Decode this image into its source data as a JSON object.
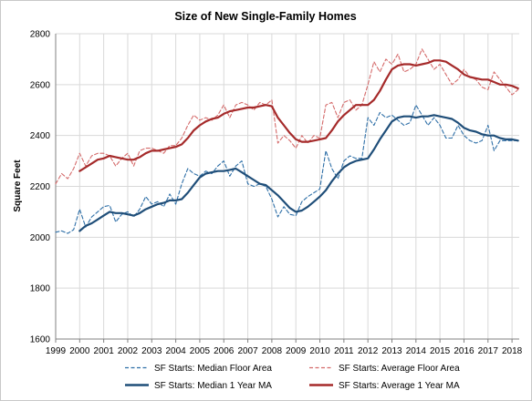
{
  "chart_data": {
    "type": "line",
    "title": "Size of New Single-Family Homes",
    "ylabel": "Square Feet",
    "xlabel": "",
    "xlim": [
      1999,
      2018.3
    ],
    "ylim": [
      1600,
      2800
    ],
    "yticks": [
      1600,
      1800,
      2000,
      2200,
      2400,
      2600,
      2800
    ],
    "xticks": [
      "1999",
      "2000",
      "2001",
      "2002",
      "2003",
      "2004",
      "2005",
      "2006",
      "2007",
      "2008",
      "2009",
      "2010",
      "2011",
      "2012",
      "2013",
      "2014",
      "2015",
      "2016",
      "2017",
      "2018"
    ],
    "grid": true,
    "legend_position": "bottom",
    "colors": {
      "median": "#2e6fa7",
      "median_ma": "#1f4e79",
      "average": "#d46a6a",
      "average_ma": "#a52a2a",
      "grid": "#d9d9d9",
      "axis": "#808080"
    },
    "series": [
      {
        "name": "SF Starts: Median Floor Area",
        "style": "dashed",
        "color": "#2e6fa7",
        "x": [
          1999.0,
          1999.25,
          1999.5,
          1999.75,
          2000.0,
          2000.25,
          2000.5,
          2000.75,
          2001.0,
          2001.25,
          2001.5,
          2001.75,
          2002.0,
          2002.25,
          2002.5,
          2002.75,
          2003.0,
          2003.25,
          2003.5,
          2003.75,
          2004.0,
          2004.25,
          2004.5,
          2004.75,
          2005.0,
          2005.25,
          2005.5,
          2005.75,
          2006.0,
          2006.25,
          2006.5,
          2006.75,
          2007.0,
          2007.25,
          2007.5,
          2007.75,
          2008.0,
          2008.25,
          2008.5,
          2008.75,
          2009.0,
          2009.25,
          2009.5,
          2009.75,
          2010.0,
          2010.25,
          2010.5,
          2010.75,
          2011.0,
          2011.25,
          2011.5,
          2011.75,
          2012.0,
          2012.25,
          2012.5,
          2012.75,
          2013.0,
          2013.25,
          2013.5,
          2013.75,
          2014.0,
          2014.25,
          2014.5,
          2014.75,
          2015.0,
          2015.25,
          2015.5,
          2015.75,
          2016.0,
          2016.25,
          2016.5,
          2016.75,
          2017.0,
          2017.25,
          2017.5,
          2017.75,
          2018.0,
          2018.25
        ],
        "values": [
          2020,
          2025,
          2015,
          2030,
          2110,
          2040,
          2080,
          2100,
          2120,
          2125,
          2060,
          2090,
          2100,
          2080,
          2110,
          2160,
          2130,
          2140,
          2120,
          2170,
          2130,
          2210,
          2270,
          2250,
          2240,
          2260,
          2250,
          2280,
          2300,
          2240,
          2280,
          2300,
          2210,
          2200,
          2210,
          2200,
          2150,
          2080,
          2120,
          2090,
          2085,
          2140,
          2160,
          2175,
          2190,
          2340,
          2270,
          2230,
          2300,
          2320,
          2310,
          2310,
          2470,
          2440,
          2490,
          2470,
          2480,
          2460,
          2440,
          2450,
          2520,
          2480,
          2440,
          2470,
          2440,
          2390,
          2390,
          2440,
          2400,
          2380,
          2370,
          2380,
          2440,
          2340,
          2380,
          2380,
          2380,
          2380
        ]
      },
      {
        "name": "SF Starts: Average Floor Area",
        "style": "dashed",
        "color": "#d46a6a",
        "x": [
          1999.0,
          1999.25,
          1999.5,
          1999.75,
          2000.0,
          2000.25,
          2000.5,
          2000.75,
          2001.0,
          2001.25,
          2001.5,
          2001.75,
          2002.0,
          2002.25,
          2002.5,
          2002.75,
          2003.0,
          2003.25,
          2003.5,
          2003.75,
          2004.0,
          2004.25,
          2004.5,
          2004.75,
          2005.0,
          2005.25,
          2005.5,
          2005.75,
          2006.0,
          2006.25,
          2006.5,
          2006.75,
          2007.0,
          2007.25,
          2007.5,
          2007.75,
          2008.0,
          2008.25,
          2008.5,
          2008.75,
          2009.0,
          2009.25,
          2009.5,
          2009.75,
          2010.0,
          2010.25,
          2010.5,
          2010.75,
          2011.0,
          2011.25,
          2011.5,
          2011.75,
          2012.0,
          2012.25,
          2012.5,
          2012.75,
          2013.0,
          2013.25,
          2013.5,
          2013.75,
          2014.0,
          2014.25,
          2014.5,
          2014.75,
          2015.0,
          2015.25,
          2015.5,
          2015.75,
          2016.0,
          2016.25,
          2016.5,
          2016.75,
          2017.0,
          2017.25,
          2017.5,
          2017.75,
          2018.0,
          2018.25
        ],
        "values": [
          2210,
          2250,
          2230,
          2270,
          2330,
          2280,
          2320,
          2330,
          2330,
          2320,
          2280,
          2310,
          2330,
          2280,
          2340,
          2350,
          2350,
          2340,
          2330,
          2360,
          2360,
          2390,
          2440,
          2480,
          2460,
          2470,
          2460,
          2480,
          2520,
          2470,
          2520,
          2530,
          2520,
          2500,
          2530,
          2520,
          2540,
          2370,
          2400,
          2380,
          2350,
          2400,
          2370,
          2400,
          2390,
          2520,
          2530,
          2470,
          2530,
          2540,
          2500,
          2520,
          2600,
          2690,
          2650,
          2700,
          2680,
          2720,
          2650,
          2660,
          2680,
          2740,
          2700,
          2660,
          2680,
          2640,
          2600,
          2620,
          2660,
          2630,
          2620,
          2590,
          2580,
          2650,
          2620,
          2590,
          2560,
          2580
        ]
      },
      {
        "name": "SF Starts: Median 1 Year MA",
        "style": "solid",
        "color": "#1f4e79",
        "x": [
          2000.0,
          2000.25,
          2000.5,
          2000.75,
          2001.0,
          2001.25,
          2001.5,
          2001.75,
          2002.0,
          2002.25,
          2002.5,
          2002.75,
          2003.0,
          2003.25,
          2003.5,
          2003.75,
          2004.0,
          2004.25,
          2004.5,
          2004.75,
          2005.0,
          2005.25,
          2005.5,
          2005.75,
          2006.0,
          2006.25,
          2006.5,
          2006.75,
          2007.0,
          2007.25,
          2007.5,
          2007.75,
          2008.0,
          2008.25,
          2008.5,
          2008.75,
          2009.0,
          2009.25,
          2009.5,
          2009.75,
          2010.0,
          2010.25,
          2010.5,
          2010.75,
          2011.0,
          2011.25,
          2011.5,
          2011.75,
          2012.0,
          2012.25,
          2012.5,
          2012.75,
          2013.0,
          2013.25,
          2013.5,
          2013.75,
          2014.0,
          2014.25,
          2014.5,
          2014.75,
          2015.0,
          2015.25,
          2015.5,
          2015.75,
          2016.0,
          2016.25,
          2016.5,
          2016.75,
          2017.0,
          2017.25,
          2017.5,
          2017.75,
          2018.0,
          2018.25
        ],
        "values": [
          2025,
          2045,
          2055,
          2070,
          2085,
          2100,
          2095,
          2095,
          2090,
          2085,
          2095,
          2110,
          2120,
          2130,
          2135,
          2145,
          2145,
          2150,
          2175,
          2205,
          2235,
          2250,
          2255,
          2260,
          2260,
          2265,
          2270,
          2255,
          2240,
          2225,
          2210,
          2205,
          2185,
          2165,
          2140,
          2115,
          2100,
          2105,
          2120,
          2140,
          2160,
          2185,
          2220,
          2250,
          2275,
          2290,
          2300,
          2305,
          2310,
          2345,
          2385,
          2420,
          2455,
          2470,
          2475,
          2475,
          2470,
          2475,
          2475,
          2480,
          2475,
          2470,
          2465,
          2450,
          2430,
          2420,
          2415,
          2405,
          2400,
          2400,
          2390,
          2385,
          2385,
          2380
        ]
      },
      {
        "name": "SF Starts: Average 1 Year MA",
        "style": "solid",
        "color": "#a52a2a",
        "x": [
          2000.0,
          2000.25,
          2000.5,
          2000.75,
          2001.0,
          2001.25,
          2001.5,
          2001.75,
          2002.0,
          2002.25,
          2002.5,
          2002.75,
          2003.0,
          2003.25,
          2003.5,
          2003.75,
          2004.0,
          2004.25,
          2004.5,
          2004.75,
          2005.0,
          2005.25,
          2005.5,
          2005.75,
          2006.0,
          2006.25,
          2006.5,
          2006.75,
          2007.0,
          2007.25,
          2007.5,
          2007.75,
          2008.0,
          2008.25,
          2008.5,
          2008.75,
          2009.0,
          2009.25,
          2009.5,
          2009.75,
          2010.0,
          2010.25,
          2010.5,
          2010.75,
          2011.0,
          2011.25,
          2011.5,
          2011.75,
          2012.0,
          2012.25,
          2012.5,
          2012.75,
          2013.0,
          2013.25,
          2013.5,
          2013.75,
          2014.0,
          2014.25,
          2014.5,
          2014.75,
          2015.0,
          2015.25,
          2015.5,
          2015.75,
          2016.0,
          2016.25,
          2016.5,
          2016.75,
          2017.0,
          2017.25,
          2017.5,
          2017.75,
          2018.0,
          2018.25
        ],
        "values": [
          2260,
          2275,
          2290,
          2305,
          2310,
          2320,
          2315,
          2310,
          2305,
          2305,
          2315,
          2330,
          2340,
          2340,
          2345,
          2350,
          2355,
          2365,
          2390,
          2420,
          2440,
          2455,
          2465,
          2470,
          2485,
          2495,
          2500,
          2505,
          2510,
          2510,
          2515,
          2520,
          2515,
          2470,
          2440,
          2410,
          2385,
          2375,
          2375,
          2380,
          2385,
          2390,
          2420,
          2455,
          2480,
          2500,
          2520,
          2520,
          2520,
          2540,
          2575,
          2620,
          2660,
          2675,
          2680,
          2680,
          2675,
          2680,
          2685,
          2695,
          2695,
          2690,
          2675,
          2660,
          2640,
          2630,
          2625,
          2620,
          2620,
          2610,
          2600,
          2600,
          2595,
          2585
        ]
      }
    ]
  }
}
